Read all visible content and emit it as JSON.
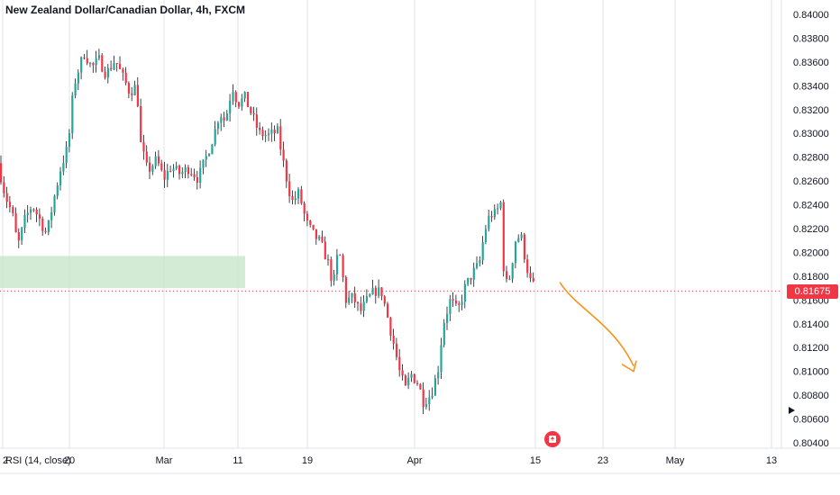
{
  "window": {
    "title": "New Zealand Dollar/Canadian Dollar, 4h, FXCM"
  },
  "price_axis": {
    "labels": [
      "0.84000",
      "0.83800",
      "0.83600",
      "0.83400",
      "0.83200",
      "0.83000",
      "0.82800",
      "0.82600",
      "0.82400",
      "0.82200",
      "0.82000",
      "0.81800",
      "0.81600",
      "0.81400",
      "0.81200",
      "0.81000",
      "0.80800",
      "0.80600",
      "0.80400"
    ],
    "current_price": "0.81675"
  },
  "time_axis": {
    "labels": [
      "2",
      "20",
      "Mar",
      "11",
      "19",
      "Apr",
      "15",
      "23",
      "May",
      "13"
    ]
  },
  "indicator": {
    "label": "RSI (14, close)"
  },
  "colors": {
    "up": "#26a69a",
    "down": "#f23645",
    "zone": "#c8e6c9",
    "arrow": "#f7931a",
    "grid": "#e0e3eb"
  },
  "icons": {
    "event_flag": "canada-flag-icon",
    "scroll_marker": "triangle-right-icon"
  },
  "chart_data": {
    "type": "candlestick",
    "symbol": "NZDCAD",
    "ylim": [
      0.804,
      0.841
    ],
    "x_ticks": [
      "2",
      "20",
      "Mar",
      "11",
      "19",
      "Apr",
      "15",
      "23",
      "May",
      "13"
    ],
    "path": [
      [
        0,
        0.8275
      ],
      [
        8,
        0.8248
      ],
      [
        16,
        0.8232
      ],
      [
        22,
        0.8205
      ],
      [
        30,
        0.8228
      ],
      [
        38,
        0.824
      ],
      [
        46,
        0.8228
      ],
      [
        54,
        0.8215
      ],
      [
        62,
        0.8245
      ],
      [
        70,
        0.8272
      ],
      [
        78,
        0.829
      ],
      [
        84,
        0.834
      ],
      [
        90,
        0.8355
      ],
      [
        96,
        0.8368
      ],
      [
        104,
        0.8355
      ],
      [
        112,
        0.8362
      ],
      [
        120,
        0.835
      ],
      [
        130,
        0.8362
      ],
      [
        138,
        0.8348
      ],
      [
        146,
        0.8335
      ],
      [
        154,
        0.834
      ],
      [
        158,
        0.8292
      ],
      [
        166,
        0.8268
      ],
      [
        176,
        0.8278
      ],
      [
        184,
        0.8262
      ],
      [
        192,
        0.8272
      ],
      [
        202,
        0.8266
      ],
      [
        212,
        0.8271
      ],
      [
        222,
        0.8262
      ],
      [
        232,
        0.8282
      ],
      [
        240,
        0.83
      ],
      [
        246,
        0.8318
      ],
      [
        252,
        0.831
      ],
      [
        260,
        0.834
      ],
      [
        266,
        0.8325
      ],
      [
        274,
        0.833
      ],
      [
        282,
        0.8315
      ],
      [
        290,
        0.83
      ],
      [
        300,
        0.8298
      ],
      [
        310,
        0.8302
      ],
      [
        318,
        0.827
      ],
      [
        326,
        0.8242
      ],
      [
        334,
        0.825
      ],
      [
        342,
        0.8225
      ],
      [
        350,
        0.8215
      ],
      [
        358,
        0.8208
      ],
      [
        366,
        0.8192
      ],
      [
        372,
        0.8172
      ],
      [
        378,
        0.8205
      ],
      [
        386,
        0.816
      ],
      [
        394,
        0.8162
      ],
      [
        402,
        0.815
      ],
      [
        410,
        0.816
      ],
      [
        418,
        0.8168
      ],
      [
        426,
        0.8166
      ],
      [
        434,
        0.814
      ],
      [
        440,
        0.812
      ],
      [
        446,
        0.8098
      ],
      [
        452,
        0.8085
      ],
      [
        458,
        0.8098
      ],
      [
        466,
        0.809
      ],
      [
        472,
        0.8075
      ],
      [
        480,
        0.808
      ],
      [
        488,
        0.81
      ],
      [
        494,
        0.814
      ],
      [
        502,
        0.816
      ],
      [
        510,
        0.815
      ],
      [
        518,
        0.817
      ],
      [
        526,
        0.8182
      ],
      [
        534,
        0.819
      ],
      [
        540,
        0.8218
      ],
      [
        546,
        0.8232
      ],
      [
        552,
        0.8232
      ],
      [
        558,
        0.8242
      ],
      [
        562,
        0.817
      ],
      [
        568,
        0.818
      ],
      [
        574,
        0.821
      ],
      [
        580,
        0.8215
      ],
      [
        586,
        0.819
      ],
      [
        592,
        0.8172
      ]
    ],
    "current_price": 0.81675,
    "demand_zone": {
      "price_top": 0.8197,
      "price_bottom": 0.817
    },
    "projection": {
      "from_price": 0.8175,
      "to_price": 0.81,
      "direction": "down"
    }
  }
}
